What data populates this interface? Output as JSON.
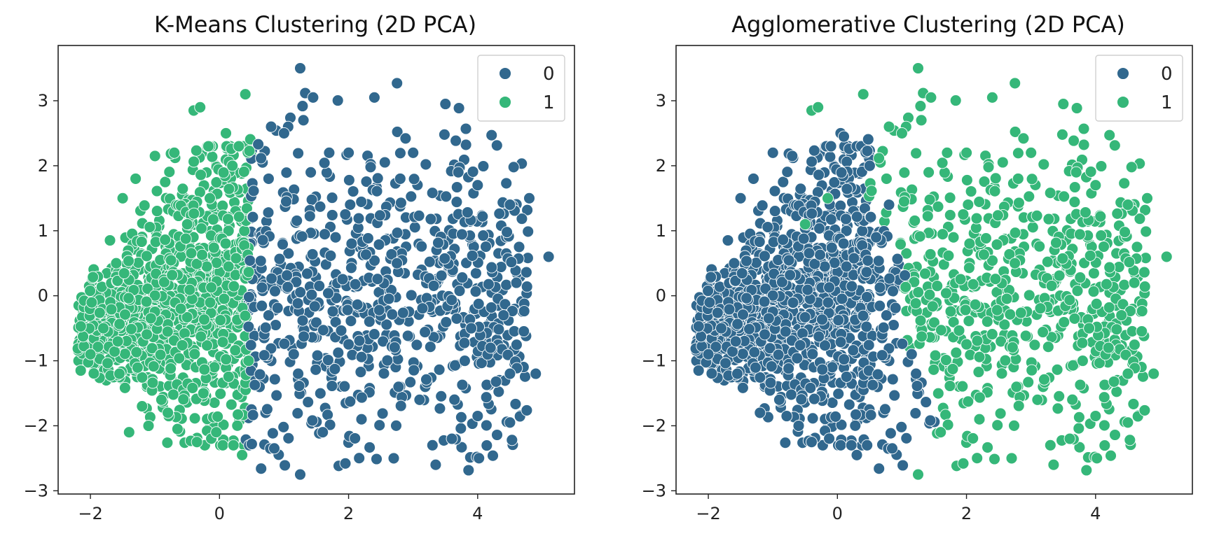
{
  "colors": {
    "cluster_0": "#31688e",
    "cluster_1": "#35b779"
  },
  "chart_data": [
    {
      "type": "scatter",
      "title": "K-Means Clustering (2D PCA)",
      "xlabel": "",
      "ylabel": "",
      "xlim": [
        -2.5,
        5.5
      ],
      "ylim": [
        -3.05,
        3.85
      ],
      "xticks": [
        -2,
        0,
        2,
        4
      ],
      "yticks": [
        -3,
        -2,
        -1,
        0,
        1,
        2,
        3
      ],
      "xtick_labels": [
        "−2",
        "0",
        "2",
        "4"
      ],
      "ytick_labels": [
        "−3",
        "−2",
        "−1",
        "0",
        "1",
        "2",
        "3"
      ],
      "grid": false,
      "legend": {
        "position": "top-right",
        "entries": [
          "0",
          "1"
        ]
      },
      "assignment": "kmeans",
      "split_x": 0.45,
      "series": [
        {
          "name": "0",
          "color": "#31688e",
          "x": [
            1.25,
            1.45,
            2.75,
            3.5,
            0.8,
            1.3,
            2.4,
            0.6,
            1.0,
            1.7,
            2.0,
            3.0,
            3.7,
            4.0,
            2.8,
            4.5,
            4.8,
            5.1,
            4.6,
            4.4,
            3.9,
            4.2,
            4.5,
            4.9,
            4.5,
            4.0,
            3.6,
            3.3,
            2.7,
            1.95,
            1.25,
            0.5,
            3.35,
            3.1,
            2.2,
            1.6,
            3.8
          ],
          "y": [
            3.5,
            3.05,
            3.27,
            2.95,
            2.6,
            2.7,
            3.05,
            2.33,
            2.5,
            2.2,
            2.2,
            2.2,
            1.9,
            1.7,
            1.8,
            1.4,
            1.5,
            0.6,
            0.2,
            -0.3,
            -0.5,
            -0.8,
            -1.2,
            -1.2,
            -1.95,
            -1.85,
            -2.2,
            -2.3,
            -2.5,
            -2.58,
            -2.75,
            -2.28,
            -2.6,
            -1.6,
            -1.9,
            -2.1,
            -1.0
          ]
        },
        {
          "name": "1",
          "color": "#35b779",
          "x": [
            -2.15,
            -2.0,
            -1.8,
            -1.6,
            -1.5,
            -1.3,
            -1.0,
            -0.7,
            -0.4,
            -0.3,
            0.1,
            0.4,
            0.2,
            0.3,
            -0.15,
            -0.5,
            -0.6,
            -0.8,
            -1.1,
            -1.4,
            -0.35,
            -0.25,
            0.35,
            0.45,
            -0.9,
            -1.2,
            -1.55,
            -0.65,
            -0.05
          ],
          "y": [
            -1.15,
            -0.9,
            -0.5,
            0.5,
            1.5,
            1.8,
            2.15,
            2.2,
            2.85,
            2.9,
            2.5,
            3.1,
            2.0,
            2.3,
            1.5,
            1.1,
            -0.2,
            -1.8,
            -2.0,
            -2.1,
            -2.25,
            -1.5,
            -2.45,
            -1.0,
            -1.6,
            -1.7,
            -1.2,
            -2.05,
            -2.1
          ]
        }
      ]
    },
    {
      "type": "scatter",
      "title": "Agglomerative Clustering (2D PCA)",
      "xlabel": "",
      "ylabel": "",
      "xlim": [
        -2.5,
        5.5
      ],
      "ylim": [
        -3.05,
        3.85
      ],
      "xticks": [
        -2,
        0,
        2,
        4
      ],
      "yticks": [
        -3,
        -2,
        -1,
        0,
        1,
        2,
        3
      ],
      "xtick_labels": [
        "−2",
        "0",
        "2",
        "4"
      ],
      "ytick_labels": [
        "−3",
        "−2",
        "−1",
        "0",
        "1",
        "2",
        "3"
      ],
      "grid": false,
      "legend": {
        "position": "top-right",
        "entries": [
          "0",
          "1"
        ]
      },
      "assignment": "agglomerative",
      "split_x": 1.0,
      "series": [
        {
          "name": "0",
          "color": "#31688e",
          "x": [
            -2.15,
            -2.0,
            -1.8,
            -1.6,
            -1.5,
            -1.3,
            -1.0,
            -0.7,
            -0.9,
            -1.2,
            -1.55,
            0.05,
            0.1,
            -0.1,
            0.5,
            0.8,
            0.6,
            -0.6,
            -0.4,
            0.3
          ],
          "y": [
            -1.15,
            -0.9,
            -0.5,
            0.5,
            1.5,
            1.8,
            2.2,
            2.15,
            -1.6,
            -1.8,
            -1.2,
            2.5,
            2.45,
            2.3,
            2.0,
            1.4,
            0.9,
            -2.0,
            -2.25,
            -2.45
          ]
        },
        {
          "name": "1",
          "color": "#35b779",
          "x": [
            1.25,
            1.45,
            2.75,
            3.5,
            0.8,
            1.3,
            2.4,
            1.0,
            1.7,
            2.0,
            3.0,
            3.7,
            4.0,
            2.8,
            4.5,
            4.8,
            5.1,
            4.6,
            4.4,
            3.9,
            4.2,
            4.5,
            4.9,
            4.5,
            4.0,
            3.6,
            3.3,
            2.7,
            1.95,
            1.25,
            3.35,
            3.1,
            2.2,
            1.6,
            3.8,
            -0.4,
            -0.3,
            0.4,
            -0.15,
            -0.5
          ],
          "y": [
            3.5,
            3.05,
            3.27,
            2.95,
            2.6,
            2.7,
            3.05,
            2.5,
            2.2,
            2.2,
            2.2,
            1.9,
            1.7,
            1.8,
            1.4,
            1.5,
            0.6,
            0.2,
            -0.3,
            -0.5,
            -0.8,
            -1.2,
            -1.2,
            -1.95,
            -1.85,
            -2.2,
            -2.3,
            -2.5,
            -2.58,
            -2.75,
            -2.6,
            -1.6,
            -1.9,
            -2.1,
            -1.0,
            2.85,
            2.9,
            3.1,
            1.5,
            1.1
          ]
        }
      ]
    }
  ]
}
